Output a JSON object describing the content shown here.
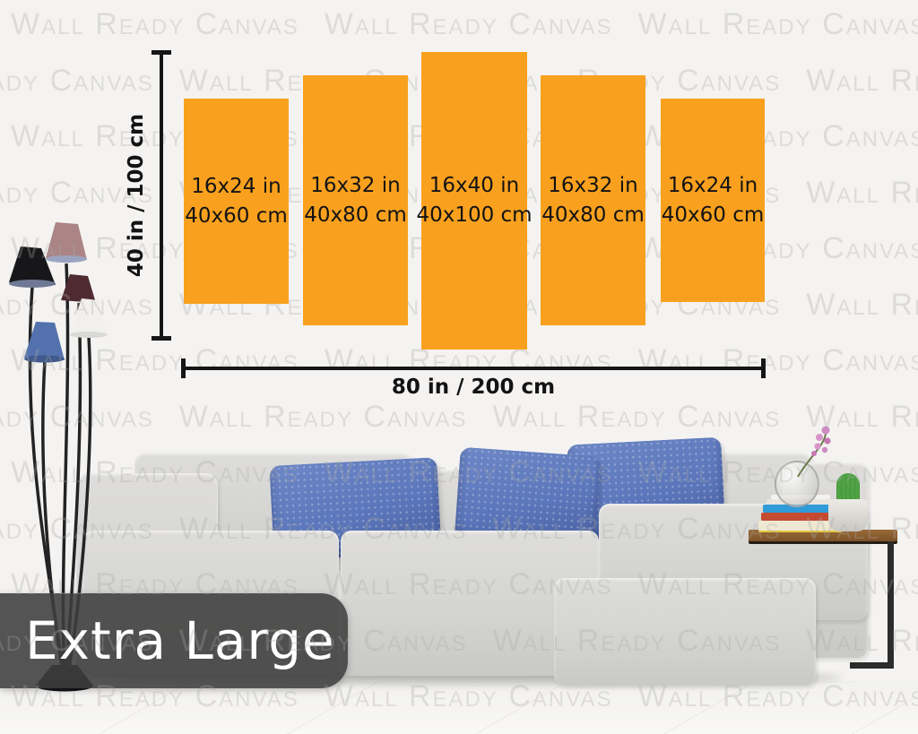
{
  "watermark": {
    "text": "Wall Ready Canvas"
  },
  "banner": {
    "label": "Extra Large"
  },
  "diagram": {
    "height_label": "40 in / 100 cm",
    "width_label": "80 in / 200 cm",
    "panels": [
      {
        "inches": "16x24 in",
        "cm": "40x60 cm"
      },
      {
        "inches": "16x32 in",
        "cm": "40x80 cm"
      },
      {
        "inches": "16x40 in",
        "cm": "40x100 cm"
      },
      {
        "inches": "16x32 in",
        "cm": "40x80 cm"
      },
      {
        "inches": "16x24 in",
        "cm": "40x60 cm"
      }
    ]
  },
  "colors": {
    "background": "#F4F3F1",
    "panel_orange": "#F9A11E",
    "line_black": "#161616",
    "banner_bg": "rgba(62,62,62,0.88)",
    "banner_text": "#FFFFFF",
    "pillow_blue": "#5B76BB",
    "sofa_gray": "#D7D7D5",
    "watermark_gray": "rgba(170,170,165,0.30)"
  },
  "scene": {
    "items": [
      "floor-lamp",
      "modular-sofa",
      "blue-pillows",
      "side-table",
      "book-stack",
      "vase-with-flowers",
      "cactus"
    ]
  }
}
